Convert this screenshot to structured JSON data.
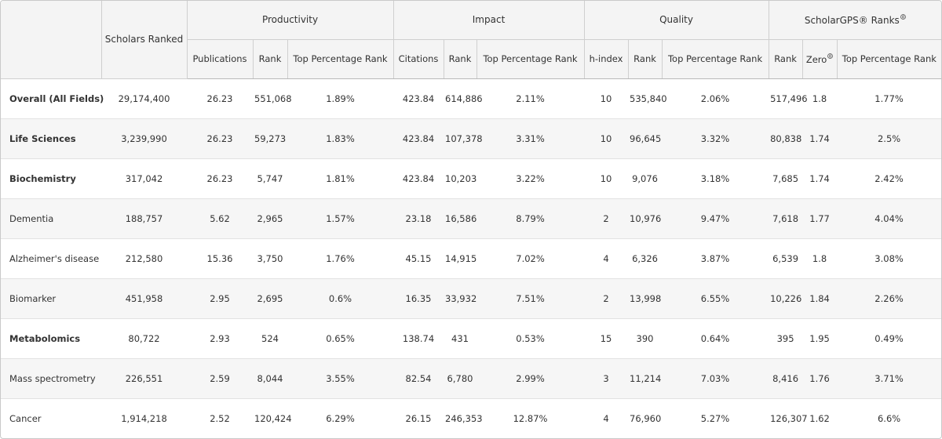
{
  "header": {
    "groups": [
      "Scholars Ranked",
      "Productivity",
      "Impact",
      "Quality",
      "ScholarGPS® Ranks"
    ],
    "columns": [
      "Publications",
      "Rank",
      "Top Percentage Rank",
      "Citations",
      "Rank",
      "Top Percentage Rank",
      "h-index",
      "Rank",
      "Top Percentage Rank",
      "Rank",
      "Zero",
      "Top Percentage Rank"
    ]
  },
  "rows": [
    {
      "field": "Overall (All Fields)",
      "bold": true,
      "values": [
        "29,174,400",
        "26.23",
        "551,068",
        "1.89%",
        "423.84",
        "614,886",
        "2.11%",
        "10",
        "535,840",
        "2.06%",
        "517,496",
        "1.8",
        "1.77%"
      ]
    },
    {
      "field": "Life Sciences",
      "bold": true,
      "values": [
        "3,239,990",
        "26.23",
        "59,273",
        "1.83%",
        "423.84",
        "107,378",
        "3.31%",
        "10",
        "96,645",
        "3.32%",
        "80,838",
        "1.74",
        "2.5%"
      ]
    },
    {
      "field": "Biochemistry",
      "bold": true,
      "values": [
        "317,042",
        "26.23",
        "5,747",
        "1.81%",
        "423.84",
        "10,203",
        "3.22%",
        "10",
        "9,076",
        "3.18%",
        "7,685",
        "1.74",
        "2.42%"
      ]
    },
    {
      "field": "Dementia",
      "bold": false,
      "values": [
        "188,757",
        "5.62",
        "2,965",
        "1.57%",
        "23.18",
        "16,586",
        "8.79%",
        "2",
        "10,976",
        "9.47%",
        "7,618",
        "1.77",
        "4.04%"
      ]
    },
    {
      "field": "Alzheimer's disease",
      "bold": false,
      "values": [
        "212,580",
        "15.36",
        "3,750",
        "1.76%",
        "45.15",
        "14,915",
        "7.02%",
        "4",
        "6,326",
        "3.87%",
        "6,539",
        "1.8",
        "3.08%"
      ]
    },
    {
      "field": "Biomarker",
      "bold": false,
      "values": [
        "451,958",
        "2.95",
        "2,695",
        "0.6%",
        "16.35",
        "33,932",
        "7.51%",
        "2",
        "13,998",
        "6.55%",
        "10,226",
        "1.84",
        "2.26%"
      ]
    },
    {
      "field": "Metabolomics",
      "bold": true,
      "values": [
        "80,722",
        "2.93",
        "524",
        "0.65%",
        "138.74",
        "431",
        "0.53%",
        "15",
        "390",
        "0.64%",
        "395",
        "1.95",
        "0.49%"
      ]
    },
    {
      "field": "Mass spectrometry",
      "bold": false,
      "values": [
        "226,551",
        "2.59",
        "8,044",
        "3.55%",
        "82.54",
        "6,780",
        "2.99%",
        "3",
        "11,214",
        "7.03%",
        "8,416",
        "1.76",
        "3.71%"
      ]
    },
    {
      "field": "Cancer",
      "bold": false,
      "values": [
        "1,914,218",
        "2.52",
        "120,424",
        "6.29%",
        "26.15",
        "246,353",
        "12.87%",
        "4",
        "76,960",
        "5.27%",
        "126,307",
        "1.62",
        "6.6%"
      ]
    }
  ]
}
